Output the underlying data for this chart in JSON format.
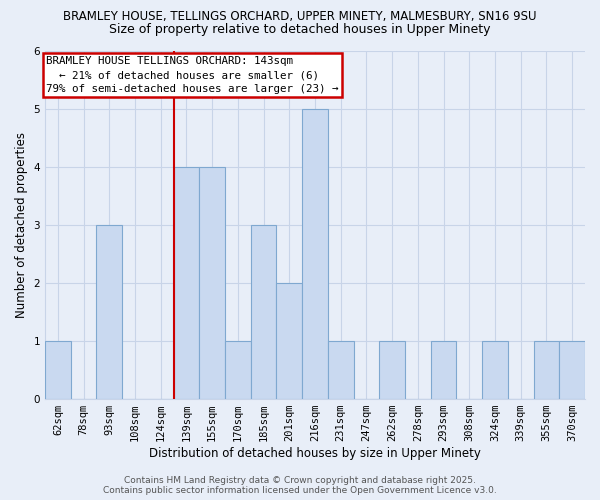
{
  "title1": "BRAMLEY HOUSE, TELLINGS ORCHARD, UPPER MINETY, MALMESBURY, SN16 9SU",
  "title2": "Size of property relative to detached houses in Upper Minety",
  "xlabel": "Distribution of detached houses by size in Upper Minety",
  "ylabel": "Number of detached properties",
  "bin_labels": [
    "62sqm",
    "78sqm",
    "93sqm",
    "108sqm",
    "124sqm",
    "139sqm",
    "155sqm",
    "170sqm",
    "185sqm",
    "201sqm",
    "216sqm",
    "231sqm",
    "247sqm",
    "262sqm",
    "278sqm",
    "293sqm",
    "308sqm",
    "324sqm",
    "339sqm",
    "355sqm",
    "370sqm"
  ],
  "bar_heights": [
    1,
    0,
    3,
    0,
    0,
    4,
    4,
    1,
    3,
    2,
    5,
    1,
    0,
    1,
    0,
    1,
    0,
    1,
    0,
    1,
    1
  ],
  "bar_color": "#c9d9f0",
  "bar_edge_color": "#7fa8d0",
  "highlight_x_label": "139sqm",
  "highlight_line_color": "#cc0000",
  "ylim": [
    0,
    6
  ],
  "yticks": [
    0,
    1,
    2,
    3,
    4,
    5,
    6
  ],
  "annotation_title": "BRAMLEY HOUSE TELLINGS ORCHARD: 143sqm",
  "annotation_line1": "  ← 21% of detached houses are smaller (6)",
  "annotation_line2": "79% of semi-detached houses are larger (23) →",
  "footer1": "Contains HM Land Registry data © Crown copyright and database right 2025.",
  "footer2": "Contains public sector information licensed under the Open Government Licence v3.0.",
  "bg_color": "#e8eef8",
  "grid_color": "#c8d4e8",
  "ann_box_color": "#cc0000",
  "title_fontsize": 8.5,
  "subtitle_fontsize": 9.0,
  "ylabel_fontsize": 8.5,
  "xlabel_fontsize": 8.5,
  "tick_fontsize": 7.5,
  "ann_fontsize": 7.8,
  "footer_fontsize": 6.5
}
